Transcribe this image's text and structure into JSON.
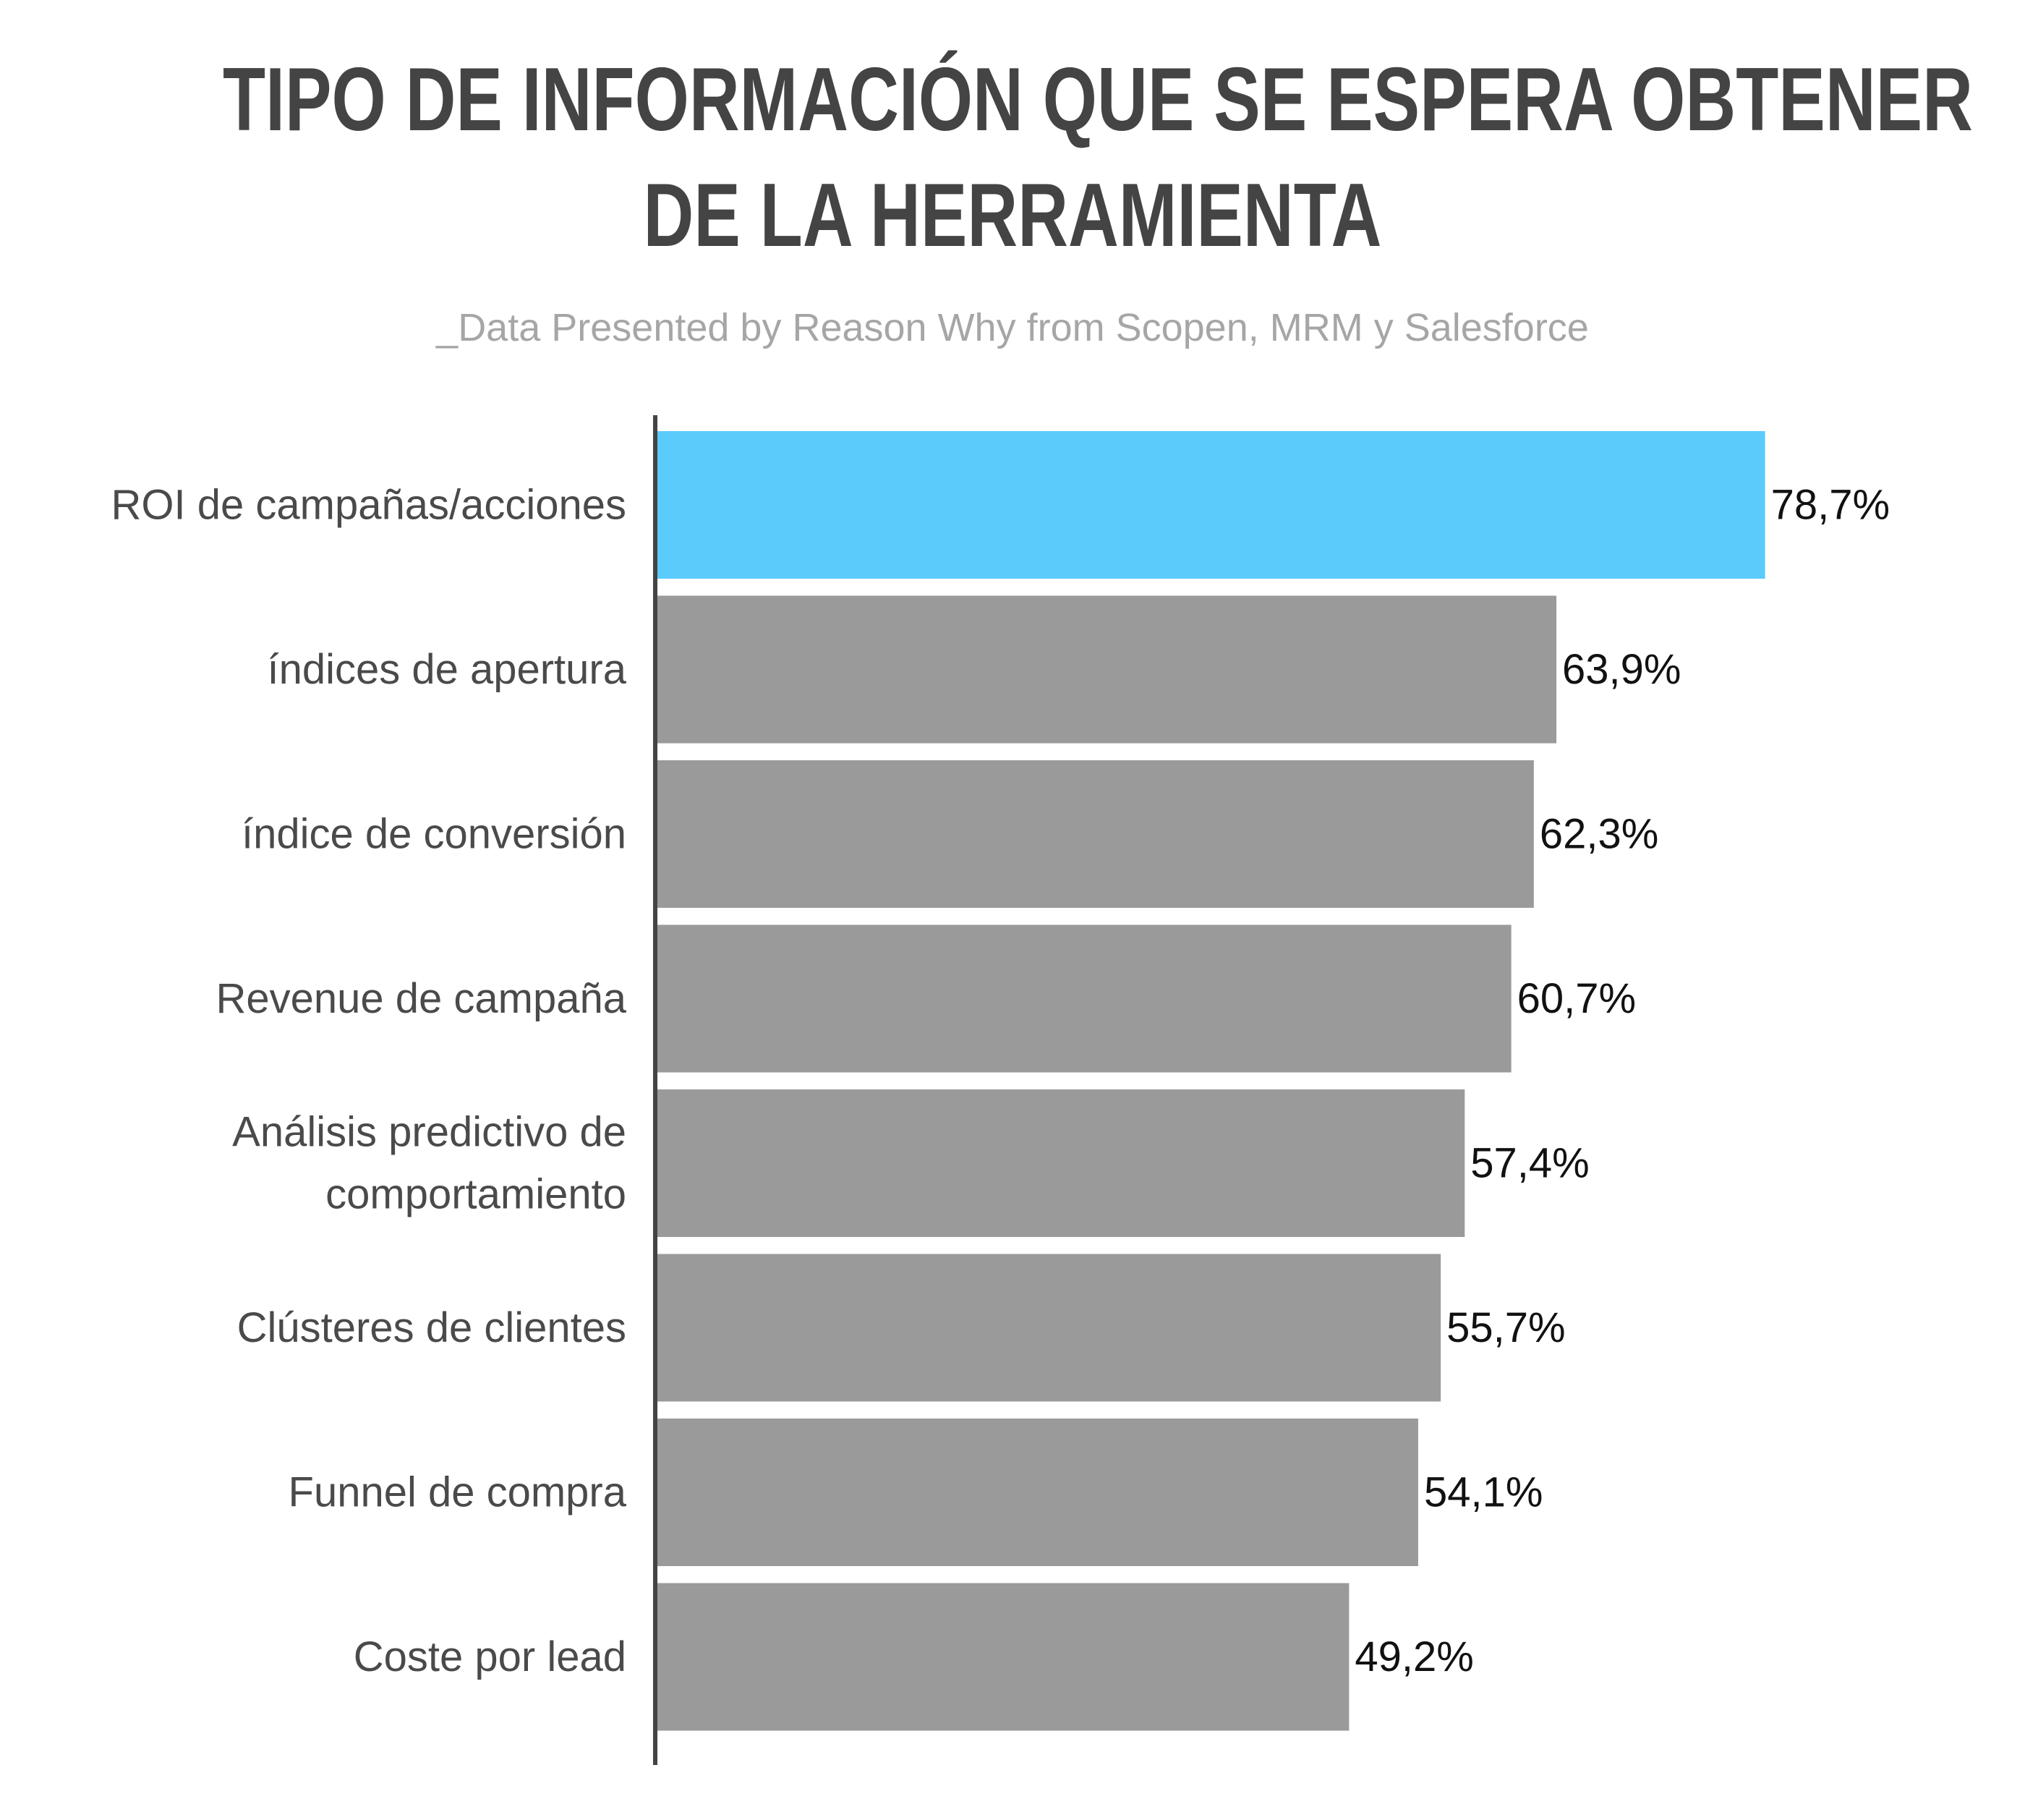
{
  "header": {
    "title_line1": "TIPO DE INFORMACIÓN QUE SE ESPERA OBTENER",
    "title_line2": "DE LA HERRAMIENTA",
    "subtitle": "_Data Presented by Reason Why from Scopen, MRM y Salesforce"
  },
  "colors": {
    "highlight": "#5bcbfc",
    "bar": "#9a9a9a",
    "axis": "#444444"
  },
  "chart_data": {
    "type": "bar",
    "orientation": "horizontal",
    "title": "TIPO DE INFORMACIÓN QUE SE ESPERA OBTENER DE LA HERRAMIENTA",
    "subtitle": "_Data Presented by Reason Why from Scopen, MRM y Salesforce",
    "categories": [
      [
        "ROI de campañas/acciones"
      ],
      [
        "índices de apertura"
      ],
      [
        "índice de conversión"
      ],
      [
        "Revenue de campaña"
      ],
      [
        "Análisis predictivo de",
        "comportamiento"
      ],
      [
        "Clústeres de clientes"
      ],
      [
        "Funnel de compra"
      ],
      [
        "Coste por lead"
      ]
    ],
    "values": [
      78.7,
      63.9,
      62.3,
      60.7,
      57.4,
      55.7,
      54.1,
      49.2
    ],
    "value_labels": [
      "78,7%",
      "63,9%",
      "62,3%",
      "60,7%",
      "57,4%",
      "55,7%",
      "54,1%",
      "49,2%"
    ],
    "highlight_index": 0,
    "xlabel": "",
    "ylabel": "",
    "grid": false,
    "legend": "none"
  }
}
